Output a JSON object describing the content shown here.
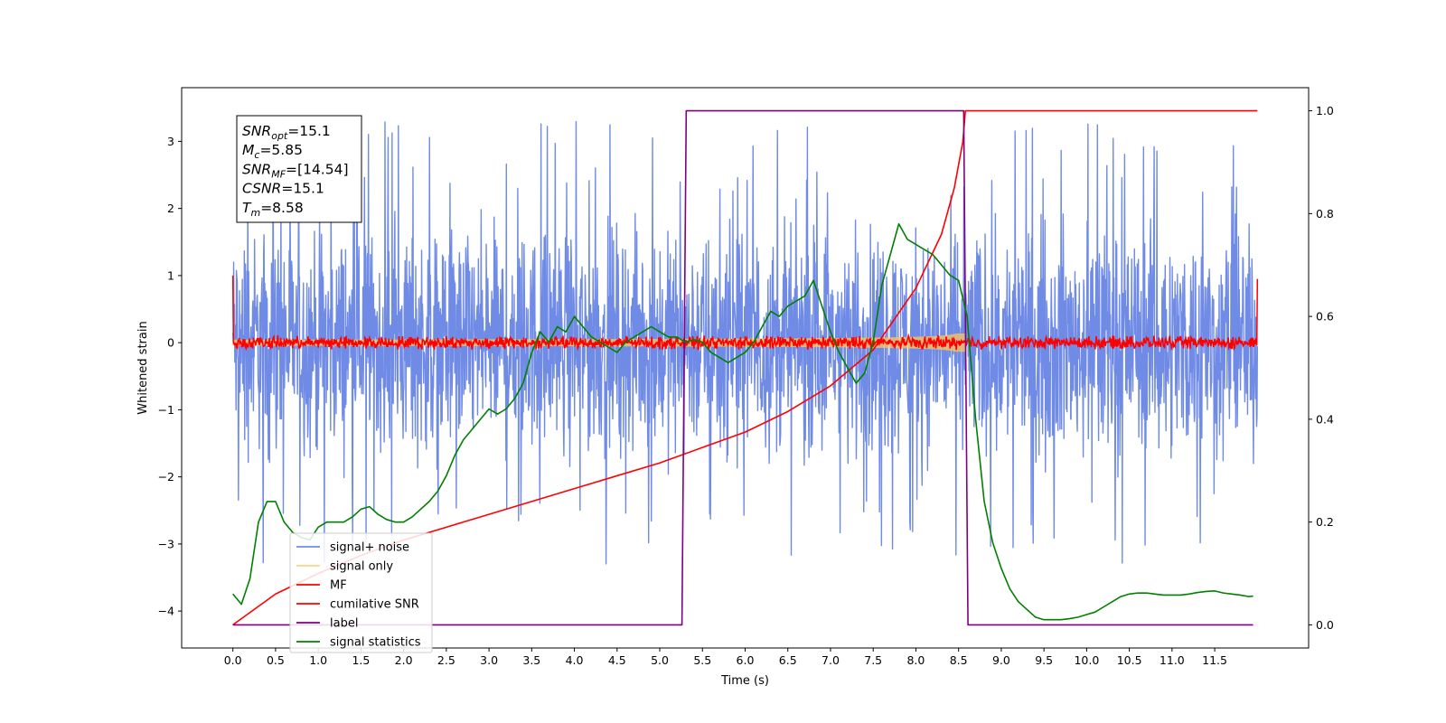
{
  "chart_data": {
    "type": "line",
    "title": "",
    "xlabel": "Time (s)",
    "ylabel": "Whitened strain",
    "y2label": "",
    "xlim": [
      -0.6,
      12.6
    ],
    "ylim": [
      -4.55,
      3.8
    ],
    "y2lim": [
      -0.045,
      1.045
    ],
    "xticks": [
      0.0,
      0.5,
      1.0,
      1.5,
      2.0,
      2.5,
      3.0,
      3.5,
      4.0,
      4.5,
      5.0,
      5.5,
      6.0,
      6.5,
      7.0,
      7.5,
      8.0,
      8.5,
      9.0,
      9.5,
      10.0,
      10.5,
      11.0,
      11.5
    ],
    "xtick_labels": [
      "0.0",
      "0.5",
      "1.0",
      "1.5",
      "2.0",
      "2.5",
      "3.0",
      "3.5",
      "4.0",
      "4.5",
      "5.0",
      "5.5",
      "6.0",
      "6.5",
      "7.0",
      "7.5",
      "8.0",
      "8.5",
      "9.0",
      "9.5",
      "10.0",
      "10.5",
      "11.0",
      "11.5"
    ],
    "yticks": [
      -4,
      -3,
      -2,
      -1,
      0,
      1,
      2,
      3
    ],
    "ytick_labels": [
      "−4",
      "−3",
      "−2",
      "−1",
      "0",
      "1",
      "2",
      "3"
    ],
    "y2ticks": [
      0.0,
      0.2,
      0.4,
      0.6,
      0.8,
      1.0
    ],
    "y2tick_labels": [
      "0.0",
      "0.2",
      "0.4",
      "0.6",
      "0.8",
      "1.0"
    ],
    "grid": false,
    "legend_position": "lower-left",
    "series": [
      {
        "name": "signal+ noise",
        "color": "#6f8be6",
        "axis": "left",
        "style": "noise-band",
        "x_range": [
          0.0,
          12.0
        ],
        "envelope": [
          -2.3,
          2.3
        ],
        "extremes": [
          -3.6,
          3.4
        ]
      },
      {
        "name": "signal only",
        "color": "#ffc55a",
        "axis": "left",
        "style": "chirp",
        "x_range": [
          0.0,
          8.58
        ],
        "amplitude_start": 0.05,
        "amplitude_end": 1.0
      },
      {
        "name": "MF",
        "color": "#ff0000",
        "axis": "left",
        "style": "noise-line",
        "x_range": [
          0.0,
          12.0
        ],
        "envelope": [
          -0.1,
          0.12
        ]
      },
      {
        "name": "cumilative SNR",
        "color": "#ff0000",
        "axis": "right",
        "x": [
          0.0,
          0.5,
          1.0,
          1.5,
          2.0,
          2.5,
          3.0,
          3.5,
          4.0,
          4.5,
          5.0,
          5.5,
          6.0,
          6.5,
          7.0,
          7.5,
          8.0,
          8.3,
          8.45,
          8.55,
          8.58,
          12.0
        ],
        "values": [
          0.0,
          0.06,
          0.1,
          0.135,
          0.165,
          0.19,
          0.215,
          0.24,
          0.265,
          0.29,
          0.315,
          0.345,
          0.375,
          0.415,
          0.465,
          0.535,
          0.655,
          0.76,
          0.85,
          0.94,
          1.0,
          1.0
        ]
      },
      {
        "name": "label",
        "color": "#800080",
        "axis": "right",
        "x": [
          0.0,
          5.26,
          5.31,
          8.56,
          8.61,
          11.95
        ],
        "values": [
          0.0,
          0.0,
          1.0,
          1.0,
          0.0,
          0.0
        ]
      },
      {
        "name": "signal statistics",
        "color": "#008000",
        "axis": "right",
        "x": [
          0.0,
          0.1,
          0.2,
          0.3,
          0.4,
          0.5,
          0.6,
          0.7,
          0.8,
          0.9,
          1.0,
          1.1,
          1.2,
          1.3,
          1.4,
          1.5,
          1.6,
          1.7,
          1.8,
          1.9,
          2.0,
          2.1,
          2.2,
          2.3,
          2.4,
          2.5,
          2.6,
          2.7,
          2.8,
          2.9,
          3.0,
          3.1,
          3.2,
          3.3,
          3.4,
          3.5,
          3.6,
          3.7,
          3.8,
          3.9,
          4.0,
          4.1,
          4.2,
          4.3,
          4.4,
          4.5,
          4.6,
          4.7,
          4.8,
          4.9,
          5.0,
          5.1,
          5.2,
          5.3,
          5.4,
          5.5,
          5.6,
          5.7,
          5.8,
          5.9,
          6.0,
          6.1,
          6.2,
          6.3,
          6.4,
          6.5,
          6.6,
          6.7,
          6.8,
          6.9,
          7.0,
          7.1,
          7.2,
          7.3,
          7.4,
          7.5,
          7.6,
          7.7,
          7.8,
          7.9,
          8.0,
          8.1,
          8.2,
          8.3,
          8.4,
          8.5,
          8.6,
          8.7,
          8.8,
          8.9,
          9.0,
          9.1,
          9.2,
          9.3,
          9.4,
          9.5,
          9.6,
          9.7,
          9.8,
          9.9,
          10.0,
          10.1,
          10.2,
          10.3,
          10.4,
          10.5,
          10.6,
          10.7,
          10.8,
          10.9,
          11.0,
          11.1,
          11.2,
          11.3,
          11.4,
          11.5,
          11.6,
          11.7,
          11.8,
          11.9,
          11.95
        ],
        "values": [
          0.06,
          0.04,
          0.09,
          0.2,
          0.24,
          0.24,
          0.2,
          0.18,
          0.17,
          0.165,
          0.19,
          0.2,
          0.2,
          0.2,
          0.21,
          0.225,
          0.23,
          0.215,
          0.205,
          0.2,
          0.2,
          0.21,
          0.225,
          0.24,
          0.26,
          0.29,
          0.33,
          0.36,
          0.38,
          0.4,
          0.42,
          0.41,
          0.42,
          0.44,
          0.47,
          0.53,
          0.57,
          0.55,
          0.58,
          0.57,
          0.6,
          0.58,
          0.56,
          0.55,
          0.54,
          0.53,
          0.55,
          0.56,
          0.57,
          0.58,
          0.57,
          0.56,
          0.56,
          0.55,
          0.555,
          0.55,
          0.53,
          0.52,
          0.51,
          0.52,
          0.53,
          0.55,
          0.58,
          0.61,
          0.6,
          0.62,
          0.63,
          0.64,
          0.67,
          0.62,
          0.57,
          0.53,
          0.5,
          0.47,
          0.49,
          0.55,
          0.66,
          0.72,
          0.78,
          0.75,
          0.74,
          0.73,
          0.72,
          0.7,
          0.68,
          0.67,
          0.6,
          0.4,
          0.24,
          0.16,
          0.11,
          0.07,
          0.045,
          0.03,
          0.015,
          0.01,
          0.01,
          0.01,
          0.012,
          0.015,
          0.02,
          0.025,
          0.035,
          0.045,
          0.055,
          0.06,
          0.062,
          0.062,
          0.06,
          0.058,
          0.058,
          0.058,
          0.06,
          0.063,
          0.065,
          0.066,
          0.062,
          0.06,
          0.058,
          0.055,
          0.056
        ]
      }
    ]
  },
  "info_box": {
    "lines": [
      {
        "var": "SNR",
        "sub": "opt",
        "value": "=15.1"
      },
      {
        "var": "M",
        "sub": "c",
        "value": "=5.85"
      },
      {
        "var": "SNR",
        "sub": "MF",
        "value": "=[14.54]"
      },
      {
        "var": "CSNR",
        "sub": "",
        "value": "=15.1"
      },
      {
        "var": "T",
        "sub": "m",
        "value": "=8.58"
      }
    ]
  }
}
